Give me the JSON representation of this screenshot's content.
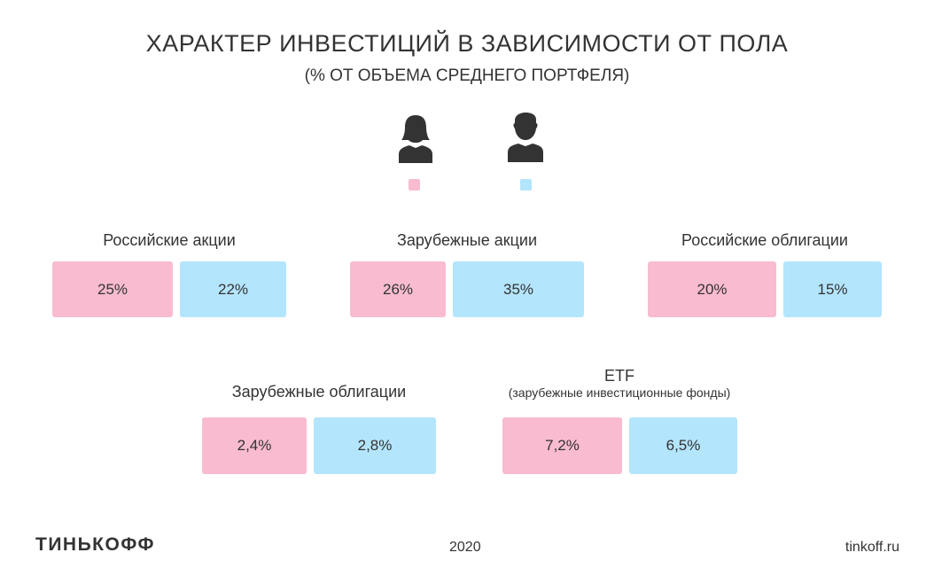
{
  "header": {
    "title": "ХАРАКТЕР ИНВЕСТИЦИЙ В ЗАВИСИМОСТИ ОТ ПОЛА",
    "subtitle": "(% ОТ ОБЪЕМА СРЕДНЕГО ПОРТФЕЛЯ)"
  },
  "legend": [
    {
      "name": "female",
      "icon": "woman-icon",
      "color": "#f8bbd0"
    },
    {
      "name": "male",
      "icon": "man-icon",
      "color": "#b3e5fc"
    }
  ],
  "chart_data": {
    "type": "table",
    "title": "ХАРАКТЕР ИНВЕСТИЦИЙ В ЗАВИСИМОСТИ ОТ ПОЛА",
    "subtitle": "(% ОТ ОБЪЕМА СРЕДНЕГО ПОРТФЕЛЯ)",
    "series": [
      {
        "name": "female",
        "color": "#f8bbd0"
      },
      {
        "name": "male",
        "color": "#b3e5fc"
      }
    ],
    "categories": [
      {
        "label": "Российские акции",
        "sublabel": "",
        "female": "25%",
        "male": "22%"
      },
      {
        "label": "Зарубежные акции",
        "sublabel": "",
        "female": "26%",
        "male": "35%"
      },
      {
        "label": "Российские облигации",
        "sublabel": "",
        "female": "20%",
        "male": "15%"
      },
      {
        "label": "Зарубежные облигации",
        "sublabel": "",
        "female": "2,4%",
        "male": "2,8%"
      },
      {
        "label": "ETF",
        "sublabel": "(зарубежные инвестиционные фонды)",
        "female": "7,2%",
        "male": "6,5%"
      }
    ]
  },
  "footer": {
    "logo": "ТИНЬКОФФ",
    "year": "2020",
    "site": "tinkoff.ru"
  }
}
